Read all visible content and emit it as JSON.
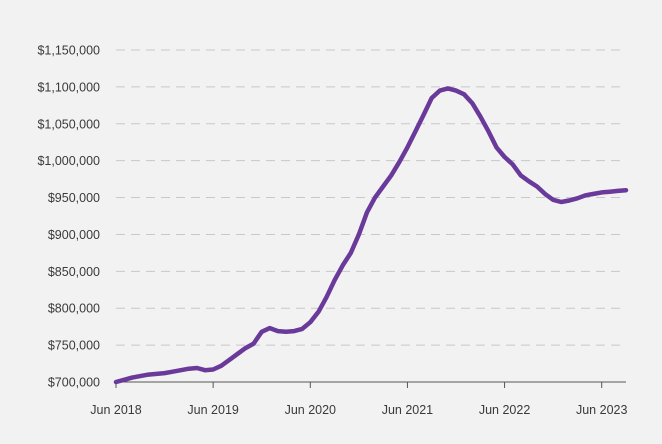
{
  "chart_data": {
    "type": "line",
    "title": "",
    "xlabel": "",
    "ylabel": "",
    "grid": true,
    "legend": "none",
    "colors": {
      "background": "#f2f2f3",
      "line": "#6a3a9a",
      "grid": "#c8c8cc"
    },
    "y_ticks": [
      {
        "value": 700000,
        "label": "$700,000"
      },
      {
        "value": 750000,
        "label": "$750,000"
      },
      {
        "value": 800000,
        "label": "$800,000"
      },
      {
        "value": 850000,
        "label": "$850,000"
      },
      {
        "value": 900000,
        "label": "$900,000"
      },
      {
        "value": 950000,
        "label": "$950,000"
      },
      {
        "value": 1000000,
        "label": "$1,000,000"
      },
      {
        "value": 1050000,
        "label": "$1,050,000"
      },
      {
        "value": 1100000,
        "label": "$1,100,000"
      },
      {
        "value": 1150000,
        "label": "$1,150,000"
      }
    ],
    "x_ticks": [
      {
        "value": "2018-06",
        "label": "Jun 2018"
      },
      {
        "value": "2019-06",
        "label": "Jun 2019"
      },
      {
        "value": "2020-06",
        "label": "Jun 2020"
      },
      {
        "value": "2021-06",
        "label": "Jun 2021"
      },
      {
        "value": "2022-06",
        "label": "Jun 2022"
      },
      {
        "value": "2023-06",
        "label": "Jun 2023"
      }
    ],
    "ylim": [
      700000,
      1150000
    ],
    "xlim": [
      "2018-06",
      "2023-09"
    ],
    "series": [
      {
        "x": [
          "2018-06",
          "2018-07",
          "2018-08",
          "2018-09",
          "2018-10",
          "2018-11",
          "2018-12",
          "2019-01",
          "2019-02",
          "2019-03",
          "2019-04",
          "2019-05",
          "2019-06",
          "2019-07",
          "2019-08",
          "2019-09",
          "2019-10",
          "2019-11",
          "2019-12",
          "2020-01",
          "2020-02",
          "2020-03",
          "2020-04",
          "2020-05",
          "2020-06",
          "2020-07",
          "2020-08",
          "2020-09",
          "2020-10",
          "2020-11",
          "2020-12",
          "2021-01",
          "2021-02",
          "2021-03",
          "2021-04",
          "2021-05",
          "2021-06",
          "2021-07",
          "2021-08",
          "2021-09",
          "2021-10",
          "2021-11",
          "2021-12",
          "2022-01",
          "2022-02",
          "2022-03",
          "2022-04",
          "2022-05",
          "2022-06",
          "2022-07",
          "2022-08",
          "2022-09",
          "2022-10",
          "2022-11",
          "2022-12",
          "2023-01",
          "2023-02",
          "2023-03",
          "2023-04",
          "2023-05",
          "2023-06",
          "2023-07",
          "2023-08",
          "2023-09"
        ],
        "values": [
          700000,
          703000,
          706000,
          708000,
          710000,
          711000,
          712000,
          714000,
          716000,
          718000,
          719000,
          716000,
          717000,
          722000,
          730000,
          738000,
          746000,
          752000,
          768000,
          773000,
          769000,
          768000,
          769000,
          772000,
          781000,
          795000,
          815000,
          838000,
          858000,
          875000,
          900000,
          930000,
          950000,
          965000,
          980000,
          998000,
          1018000,
          1040000,
          1062000,
          1085000,
          1095000,
          1098000,
          1095000,
          1090000,
          1078000,
          1060000,
          1040000,
          1018000,
          1005000,
          995000,
          980000,
          972000,
          965000,
          955000,
          947000,
          944000,
          946000,
          949000,
          953000,
          955000,
          957000,
          958000,
          959000,
          960000
        ]
      }
    ]
  }
}
